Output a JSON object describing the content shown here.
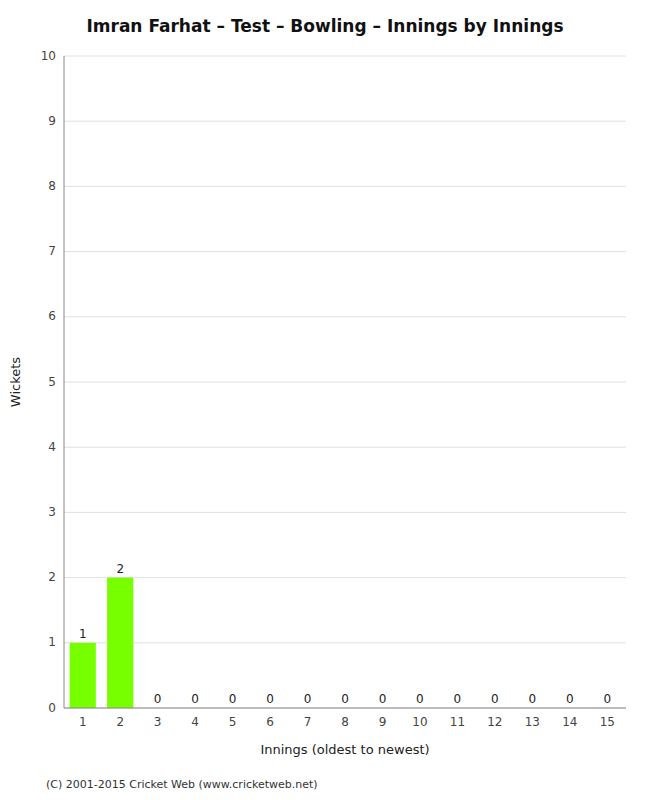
{
  "chart_data": {
    "type": "bar",
    "title": "Imran Farhat – Test – Bowling – Innings by Innings",
    "x_label": "Innings (oldest to newest)",
    "y_label": "Wickets",
    "categories": [
      "1",
      "2",
      "3",
      "4",
      "5",
      "6",
      "7",
      "8",
      "9",
      "10",
      "11",
      "12",
      "13",
      "14",
      "15"
    ],
    "values": [
      1,
      2,
      0,
      0,
      0,
      0,
      0,
      0,
      0,
      0,
      0,
      0,
      0,
      0,
      0
    ],
    "color": "#77ff00",
    "ylim": [
      0,
      10
    ],
    "yticks": [
      0,
      1,
      2,
      3,
      4,
      5,
      6,
      7,
      8,
      9,
      10
    ],
    "grid": true,
    "data_labels": true,
    "annotations": [
      "(C) 2001-2015 Cricket Web (www.cricketweb.net)"
    ]
  }
}
